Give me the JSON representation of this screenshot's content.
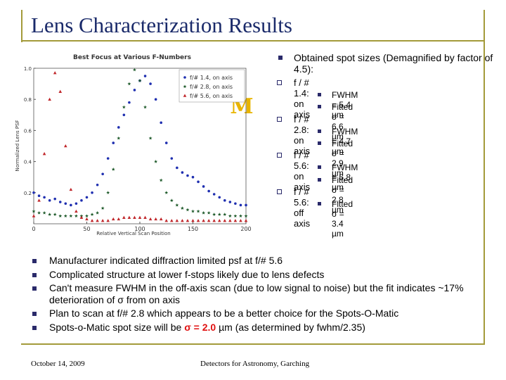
{
  "header": {
    "title": "Lens Characterization Results"
  },
  "logo": "M",
  "chart_data": {
    "type": "scatter",
    "title": "Best Focus at Various F-Numbers",
    "x_label": "Relative Vertical Scan Position",
    "y_label": "Normalized Lens PSF",
    "xlim": [
      0,
      200
    ],
    "ylim": [
      0,
      1.0
    ],
    "xticks": [
      0,
      50,
      100,
      150,
      200
    ],
    "yticks": [
      {
        "value": 0.2,
        "label": "0.2"
      },
      {
        "value": 0.4,
        "label": "0.4"
      },
      {
        "value": 0.6,
        "label": "0.6"
      },
      {
        "value": 0.8,
        "label": "0.8"
      },
      {
        "value": 1.0,
        "label": "1.0"
      }
    ],
    "legend": "upper right",
    "series": [
      {
        "name": "f/# 1.4, on axis",
        "color": "#1f2fb0",
        "marker": "circle",
        "x": [
          0,
          5,
          10,
          15,
          20,
          25,
          30,
          35,
          40,
          45,
          50,
          55,
          60,
          65,
          70,
          75,
          80,
          85,
          90,
          95,
          100,
          105,
          110,
          115,
          120,
          125,
          130,
          135,
          140,
          145,
          150,
          155,
          160,
          165,
          170,
          175,
          180,
          185,
          190,
          195,
          200
        ],
        "values": [
          0.2,
          0.18,
          0.17,
          0.15,
          0.16,
          0.14,
          0.13,
          0.12,
          0.13,
          0.15,
          0.17,
          0.2,
          0.25,
          0.32,
          0.42,
          0.52,
          0.62,
          0.7,
          0.78,
          0.86,
          0.92,
          0.95,
          0.9,
          0.8,
          0.65,
          0.52,
          0.42,
          0.36,
          0.33,
          0.31,
          0.3,
          0.27,
          0.24,
          0.21,
          0.19,
          0.17,
          0.15,
          0.14,
          0.13,
          0.12,
          0.12
        ]
      },
      {
        "name": "f/# 2.8, on axis",
        "color": "#1e5a2a",
        "marker": "star",
        "x": [
          0,
          5,
          10,
          15,
          20,
          25,
          30,
          35,
          40,
          45,
          50,
          55,
          60,
          65,
          70,
          75,
          80,
          85,
          90,
          95,
          100,
          105,
          110,
          115,
          120,
          125,
          130,
          135,
          140,
          145,
          150,
          155,
          160,
          165,
          170,
          175,
          180,
          185,
          190,
          195,
          200
        ],
        "values": [
          0.08,
          0.07,
          0.07,
          0.06,
          0.06,
          0.05,
          0.05,
          0.05,
          0.05,
          0.05,
          0.05,
          0.06,
          0.07,
          0.1,
          0.2,
          0.35,
          0.55,
          0.75,
          0.9,
          0.99,
          0.92,
          0.75,
          0.55,
          0.4,
          0.28,
          0.2,
          0.15,
          0.12,
          0.1,
          0.09,
          0.08,
          0.08,
          0.07,
          0.07,
          0.06,
          0.06,
          0.06,
          0.05,
          0.05,
          0.05,
          0.05
        ]
      },
      {
        "name": "f/# 5.6, on axis",
        "color": "#c0262a",
        "marker": "triangle",
        "x": [
          0,
          5,
          10,
          15,
          20,
          25,
          30,
          35,
          40,
          45,
          50,
          55,
          60,
          65,
          70,
          75,
          80,
          85,
          90,
          95,
          100,
          105,
          110,
          115,
          120,
          125,
          130,
          135,
          140,
          145,
          150,
          155,
          160,
          165,
          170,
          175,
          180,
          185,
          190,
          195,
          200
        ],
        "values": [
          0.05,
          0.15,
          0.45,
          0.8,
          0.97,
          0.85,
          0.5,
          0.22,
          0.08,
          0.04,
          0.03,
          0.02,
          0.02,
          0.02,
          0.02,
          0.03,
          0.03,
          0.04,
          0.04,
          0.04,
          0.04,
          0.04,
          0.03,
          0.03,
          0.03,
          0.02,
          0.02,
          0.02,
          0.02,
          0.02,
          0.02,
          0.02,
          0.02,
          0.02,
          0.02,
          0.02,
          0.02,
          0.02,
          0.02,
          0.02,
          0.02
        ]
      }
    ]
  },
  "right_list": {
    "text": "Obtained spot sizes (Demagnified by factor of 4.5):",
    "items": [
      {
        "text": "f / # 1.4: on axis",
        "items": [
          "FWHM = 5.4 µm",
          "Fitted σ = 6.6 µm"
        ]
      },
      {
        "text": "f / # 2.8: on axis",
        "items": [
          "FWHM = 4.7 µm",
          "Fitted σ = 2.9 µm"
        ]
      },
      {
        "text": "f / # 5.6: on axis",
        "items": [
          "FWHM = 5.8 µm",
          "Fitted σ = 2.8 µm"
        ]
      },
      {
        "text": "f / # 5.6: off axis",
        "items": [
          "Fitted σ = 3.4 µm"
        ]
      }
    ]
  },
  "bottom_list": [
    "Manufacturer indicated diffraction limited psf at f/# 5.6",
    "Complicated structure at lower f-stops likely due to lens defects",
    "Can't measure FWHM in the off-axis scan (due to low signal to noise) but the fit indicates ~17% deterioration of σ from on axis",
    "Plan to scan at f/# 2.8 which appears to be a better choice for the Spots-O-Matic",
    {
      "before": "Spots-o-Matic spot size will be ",
      "highlight": "σ = 2.0",
      "after": " µm (as determined by fwhm/2.35)"
    }
  ],
  "footer": {
    "date": "October 14, 2009",
    "event": "Detectors for Astronomy, Garching"
  }
}
